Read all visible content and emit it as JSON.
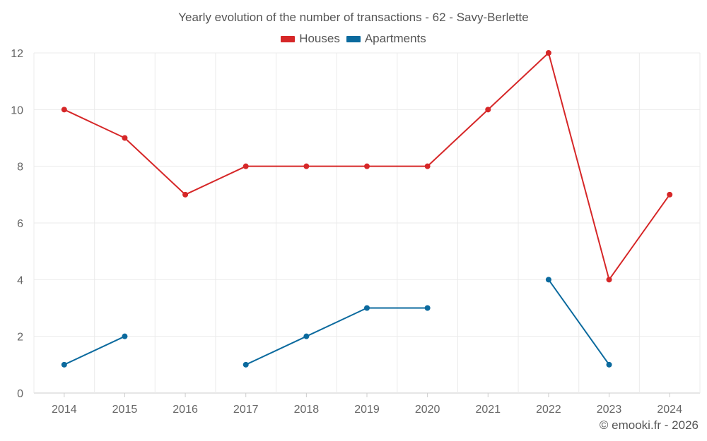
{
  "chart_data": {
    "type": "line",
    "title": "Yearly evolution of the number of transactions - 62 - Savy-Berlette",
    "categories": [
      "2014",
      "2015",
      "2016",
      "2017",
      "2018",
      "2019",
      "2020",
      "2021",
      "2022",
      "2023",
      "2024"
    ],
    "series": [
      {
        "name": "Houses",
        "color": "#d62728",
        "values": [
          10,
          9,
          7,
          8,
          8,
          8,
          8,
          10,
          12,
          4,
          7
        ]
      },
      {
        "name": "Apartments",
        "color": "#0b6a9e",
        "values": [
          1,
          2,
          null,
          1,
          2,
          3,
          3,
          null,
          4,
          1,
          null
        ]
      }
    ],
    "ylim": [
      0,
      12
    ],
    "yticks": [
      0,
      2,
      4,
      6,
      8,
      10,
      12
    ],
    "grid": true,
    "legend_position": "top-center",
    "xlabel": "",
    "ylabel": ""
  },
  "credit": "© emooki.fr - 2026"
}
